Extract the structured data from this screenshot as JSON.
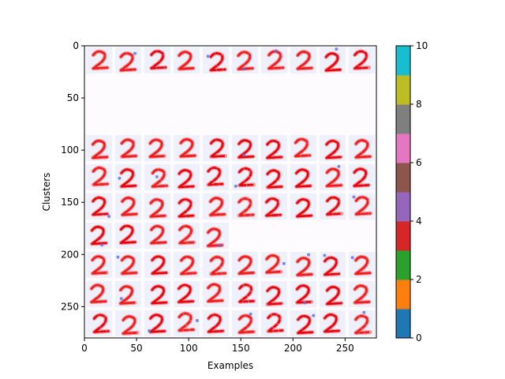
{
  "chart_data": {
    "type": "heatmap",
    "xlabel": "Examples",
    "ylabel": "Clusters",
    "xlim": [
      0,
      280
    ],
    "ylim": [
      0,
      280
    ],
    "y_inverted": true,
    "xticks": [
      0,
      50,
      100,
      150,
      200,
      250
    ],
    "yticks": [
      0,
      50,
      100,
      150,
      200,
      250
    ],
    "tile_size": 28,
    "grid_columns": 10,
    "grid_rows": 10,
    "image_cmap": "bwr",
    "tiles_per_row": [
      10,
      0,
      0,
      10,
      10,
      10,
      5,
      10,
      10,
      10
    ],
    "colorbar": {
      "ticks": [
        0,
        2,
        4,
        6,
        8,
        10
      ],
      "range": [
        0,
        10
      ],
      "levels": 10,
      "colors": [
        "#1f77b4",
        "#ff7f0e",
        "#2ca02c",
        "#d62728",
        "#9467bd",
        "#8c564b",
        "#e377c2",
        "#7f7f7f",
        "#bcbd22",
        "#17becf"
      ]
    }
  }
}
